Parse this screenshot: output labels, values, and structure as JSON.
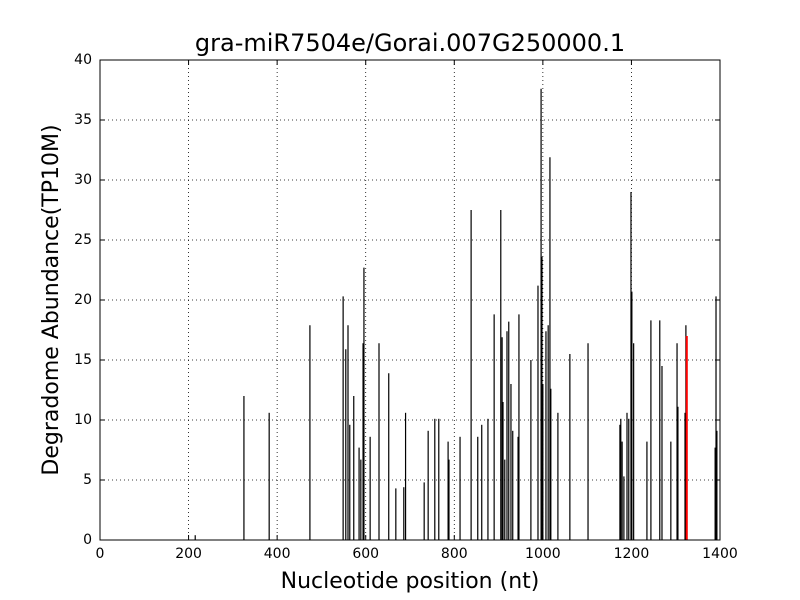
{
  "chart_data": {
    "type": "stem",
    "title": "gra-miR7504e/Gorai.007G250000.1",
    "x_label": "Nucleotide position (nt)",
    "y_label": "Degradome Abundance(TP10M)",
    "xlim": [
      0,
      1400
    ],
    "xticks": [
      0,
      200,
      400,
      600,
      800,
      1000,
      1200,
      1400
    ],
    "ylim": [
      0,
      40
    ],
    "yticks": [
      0,
      5,
      10,
      15,
      20,
      25,
      30,
      35,
      40
    ],
    "grid": true,
    "series": [
      {
        "color": "#000000",
        "x": [
          215,
          325,
          382,
          474,
          549,
          555,
          560,
          564,
          573,
          585,
          589,
          594,
          596,
          610,
          630,
          652,
          668,
          686,
          690,
          732,
          741,
          756,
          765,
          786,
          788,
          813,
          838,
          853,
          862,
          876,
          890,
          905,
          908,
          910,
          914,
          919,
          923,
          928,
          932,
          944,
          946,
          973,
          989,
          996,
          998,
          1000,
          1007,
          1012,
          1016,
          1018,
          1034,
          1061,
          1102,
          1174,
          1176,
          1179,
          1183,
          1190,
          1194,
          1199,
          1201,
          1205,
          1235,
          1244,
          1264,
          1269,
          1289,
          1303,
          1305,
          1321,
          1323,
          1389,
          1391,
          1393
        ],
        "values": [
          0.4,
          12.0,
          10.6,
          17.9,
          20.3,
          15.9,
          17.9,
          9.6,
          12.0,
          7.7,
          6.7,
          16.4,
          22.7,
          8.6,
          16.4,
          13.9,
          4.3,
          4.4,
          10.6,
          4.8,
          9.1,
          10.1,
          10.1,
          8.2,
          6.7,
          8.6,
          27.5,
          8.6,
          9.6,
          10.1,
          18.8,
          27.5,
          16.9,
          11.5,
          6.7,
          17.4,
          18.2,
          13.0,
          9.1,
          8.6,
          18.8,
          15.0,
          21.2,
          37.6,
          23.6,
          13.0,
          17.4,
          17.9,
          31.9,
          12.6,
          10.6,
          15.5,
          16.4,
          9.6,
          10.1,
          8.2,
          5.3,
          10.6,
          10.1,
          29.0,
          20.7,
          16.4,
          8.2,
          18.3,
          18.3,
          14.5,
          8.2,
          16.4,
          11.1,
          10.6,
          17.9,
          7.7,
          20.3,
          9.1
        ]
      },
      {
        "color": "#ff0000",
        "x": [
          1325
        ],
        "values": [
          17.0
        ]
      }
    ]
  }
}
